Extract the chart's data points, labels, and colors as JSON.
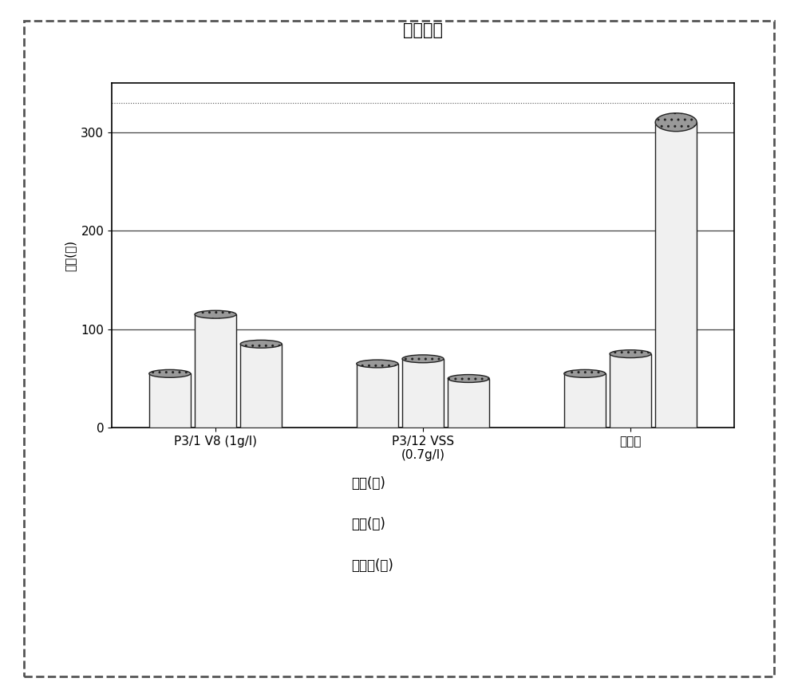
{
  "title": "干燥时间",
  "ylabel": "时间(秒)",
  "groups": [
    "P3/1 V8 (1g/l)",
    "P3/12 VSS\n(0.7g/l)",
    "标准物"
  ],
  "series_labels": [
    "玻璃(左)",
    "塑料(中)",
    "不锈钙(右)"
  ],
  "values": [
    [
      55,
      115,
      85
    ],
    [
      65,
      70,
      50
    ],
    [
      55,
      75,
      310
    ]
  ],
  "ylim": [
    0,
    350
  ],
  "yticks": [
    0,
    100,
    200,
    300
  ],
  "bar_width": 0.18,
  "background_color": "#ffffff",
  "bar_face_color": "#f0f0f0",
  "bar_edge_color": "#222222",
  "cap_face_color": "#999999",
  "title_fontsize": 15,
  "label_fontsize": 11,
  "tick_fontsize": 11,
  "legend_fontsize": 12,
  "dpi": 100,
  "figsize": [
    10.0,
    8.65
  ],
  "group_positions": [
    0.35,
    1.25,
    2.15
  ]
}
